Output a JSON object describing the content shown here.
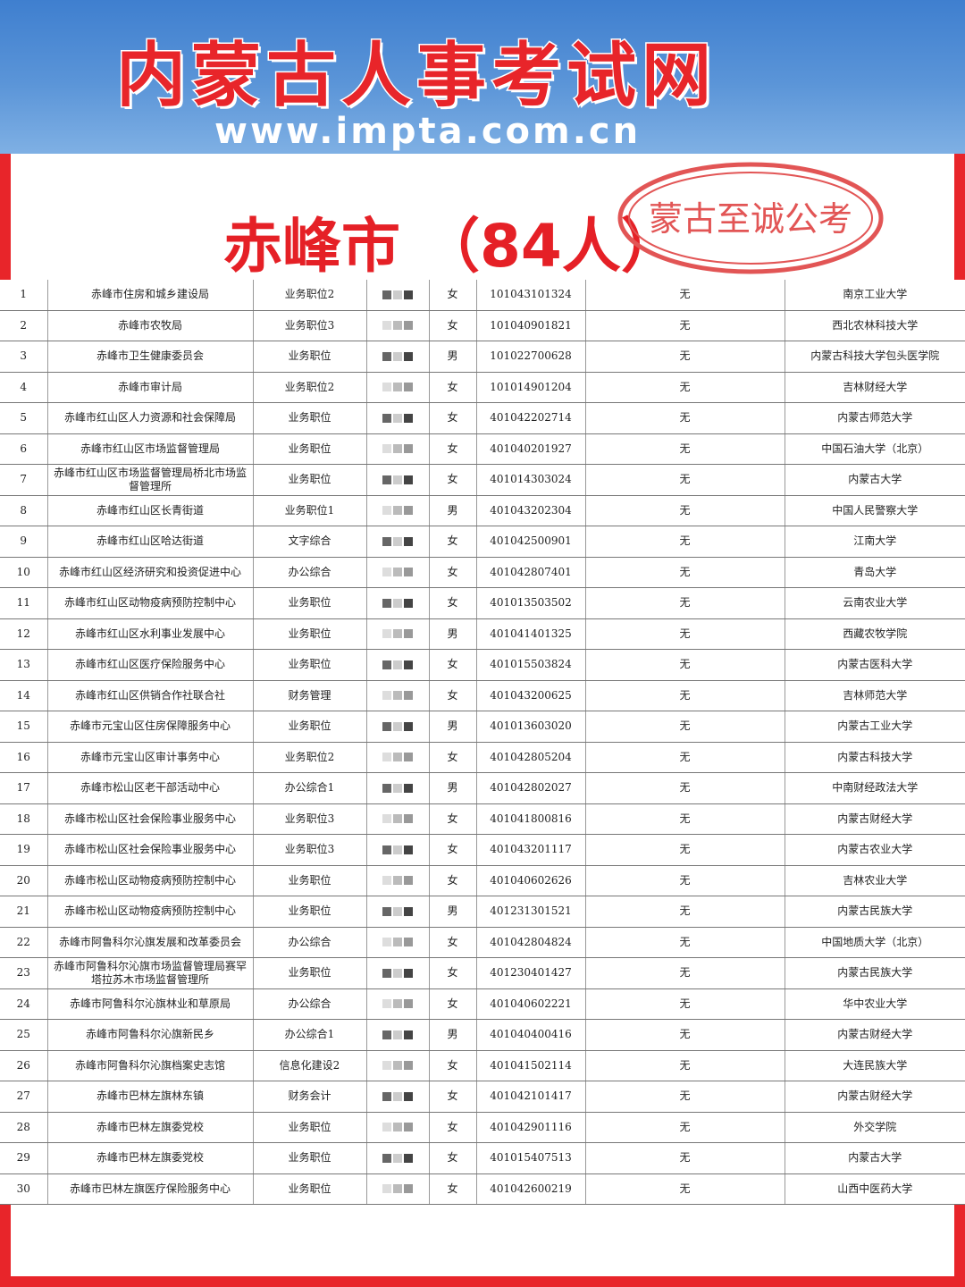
{
  "header": {
    "logo_text": "内蒙古人事考试网",
    "url": "www.impta.com.cn"
  },
  "title": "赤峰市 （84人）",
  "watermark": "蒙古至诚公考",
  "colors": {
    "brand_red": "#e52026",
    "banner_blue": "#4a88d4"
  },
  "rows": [
    {
      "no": "1",
      "dept": "赤峰市住房和城乡建设局",
      "position": "业务职位2",
      "gender": "女",
      "id": "101043101324",
      "extra": "无",
      "school": "南京工业大学"
    },
    {
      "no": "2",
      "dept": "赤峰市农牧局",
      "position": "业务职位3",
      "gender": "女",
      "id": "101040901821",
      "extra": "无",
      "school": "西北农林科技大学"
    },
    {
      "no": "3",
      "dept": "赤峰市卫生健康委员会",
      "position": "业务职位",
      "gender": "男",
      "id": "101022700628",
      "extra": "无",
      "school": "内蒙古科技大学包头医学院"
    },
    {
      "no": "4",
      "dept": "赤峰市审计局",
      "position": "业务职位2",
      "gender": "女",
      "id": "101014901204",
      "extra": "无",
      "school": "吉林财经大学"
    },
    {
      "no": "5",
      "dept": "赤峰市红山区人力资源和社会保障局",
      "position": "业务职位",
      "gender": "女",
      "id": "401042202714",
      "extra": "无",
      "school": "内蒙古师范大学"
    },
    {
      "no": "6",
      "dept": "赤峰市红山区市场监督管理局",
      "position": "业务职位",
      "gender": "女",
      "id": "401040201927",
      "extra": "无",
      "school": "中国石油大学（北京）"
    },
    {
      "no": "7",
      "dept": "赤峰市红山区市场监督管理局桥北市场监督管理所",
      "position": "业务职位",
      "gender": "女",
      "id": "401014303024",
      "extra": "无",
      "school": "内蒙古大学"
    },
    {
      "no": "8",
      "dept": "赤峰市红山区长青街道",
      "position": "业务职位1",
      "gender": "男",
      "id": "401043202304",
      "extra": "无",
      "school": "中国人民警察大学"
    },
    {
      "no": "9",
      "dept": "赤峰市红山区哈达街道",
      "position": "文字综合",
      "gender": "女",
      "id": "401042500901",
      "extra": "无",
      "school": "江南大学"
    },
    {
      "no": "10",
      "dept": "赤峰市红山区经济研究和投资促进中心",
      "position": "办公综合",
      "gender": "女",
      "id": "401042807401",
      "extra": "无",
      "school": "青岛大学"
    },
    {
      "no": "11",
      "dept": "赤峰市红山区动物疫病预防控制中心",
      "position": "业务职位",
      "gender": "女",
      "id": "401013503502",
      "extra": "无",
      "school": "云南农业大学"
    },
    {
      "no": "12",
      "dept": "赤峰市红山区水利事业发展中心",
      "position": "业务职位",
      "gender": "男",
      "id": "401041401325",
      "extra": "无",
      "school": "西藏农牧学院"
    },
    {
      "no": "13",
      "dept": "赤峰市红山区医疗保险服务中心",
      "position": "业务职位",
      "gender": "女",
      "id": "401015503824",
      "extra": "无",
      "school": "内蒙古医科大学"
    },
    {
      "no": "14",
      "dept": "赤峰市红山区供销合作社联合社",
      "position": "财务管理",
      "gender": "女",
      "id": "401043200625",
      "extra": "无",
      "school": "吉林师范大学"
    },
    {
      "no": "15",
      "dept": "赤峰市元宝山区住房保障服务中心",
      "position": "业务职位",
      "gender": "男",
      "id": "401013603020",
      "extra": "无",
      "school": "内蒙古工业大学"
    },
    {
      "no": "16",
      "dept": "赤峰市元宝山区审计事务中心",
      "position": "业务职位2",
      "gender": "女",
      "id": "401042805204",
      "extra": "无",
      "school": "内蒙古科技大学"
    },
    {
      "no": "17",
      "dept": "赤峰市松山区老干部活动中心",
      "position": "办公综合1",
      "gender": "男",
      "id": "401042802027",
      "extra": "无",
      "school": "中南财经政法大学"
    },
    {
      "no": "18",
      "dept": "赤峰市松山区社会保险事业服务中心",
      "position": "业务职位3",
      "gender": "女",
      "id": "401041800816",
      "extra": "无",
      "school": "内蒙古财经大学"
    },
    {
      "no": "19",
      "dept": "赤峰市松山区社会保险事业服务中心",
      "position": "业务职位3",
      "gender": "女",
      "id": "401043201117",
      "extra": "无",
      "school": "内蒙古农业大学"
    },
    {
      "no": "20",
      "dept": "赤峰市松山区动物疫病预防控制中心",
      "position": "业务职位",
      "gender": "女",
      "id": "401040602626",
      "extra": "无",
      "school": "吉林农业大学"
    },
    {
      "no": "21",
      "dept": "赤峰市松山区动物疫病预防控制中心",
      "position": "业务职位",
      "gender": "男",
      "id": "401231301521",
      "extra": "无",
      "school": "内蒙古民族大学"
    },
    {
      "no": "22",
      "dept": "赤峰市阿鲁科尔沁旗发展和改革委员会",
      "position": "办公综合",
      "gender": "女",
      "id": "401042804824",
      "extra": "无",
      "school": "中国地质大学（北京）"
    },
    {
      "no": "23",
      "dept": "赤峰市阿鲁科尔沁旗市场监督管理局赛罕塔拉苏木市场监督管理所",
      "position": "业务职位",
      "gender": "女",
      "id": "401230401427",
      "extra": "无",
      "school": "内蒙古民族大学"
    },
    {
      "no": "24",
      "dept": "赤峰市阿鲁科尔沁旗林业和草原局",
      "position": "办公综合",
      "gender": "女",
      "id": "401040602221",
      "extra": "无",
      "school": "华中农业大学"
    },
    {
      "no": "25",
      "dept": "赤峰市阿鲁科尔沁旗新民乡",
      "position": "办公综合1",
      "gender": "男",
      "id": "401040400416",
      "extra": "无",
      "school": "内蒙古财经大学"
    },
    {
      "no": "26",
      "dept": "赤峰市阿鲁科尔沁旗档案史志馆",
      "position": "信息化建设2",
      "gender": "女",
      "id": "401041502114",
      "extra": "无",
      "school": "大连民族大学"
    },
    {
      "no": "27",
      "dept": "赤峰市巴林左旗林东镇",
      "position": "财务会计",
      "gender": "女",
      "id": "401042101417",
      "extra": "无",
      "school": "内蒙古财经大学"
    },
    {
      "no": "28",
      "dept": "赤峰市巴林左旗委党校",
      "position": "业务职位",
      "gender": "女",
      "id": "401042901116",
      "extra": "无",
      "school": "外交学院"
    },
    {
      "no": "29",
      "dept": "赤峰市巴林左旗委党校",
      "position": "业务职位",
      "gender": "女",
      "id": "401015407513",
      "extra": "无",
      "school": "内蒙古大学"
    },
    {
      "no": "30",
      "dept": "赤峰市巴林左旗医疗保险服务中心",
      "position": "业务职位",
      "gender": "女",
      "id": "401042600219",
      "extra": "无",
      "school": "山西中医药大学"
    }
  ]
}
